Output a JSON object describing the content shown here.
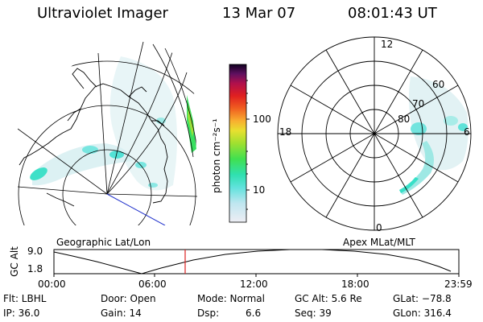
{
  "header": {
    "instrument": "Ultraviolet Imager",
    "date": "13 Mar 07",
    "time": "08:01:43 UT"
  },
  "colorbar": {
    "unit_label": "photon cm⁻²s⁻¹",
    "ticks": [
      "100",
      "10"
    ],
    "scale": "log",
    "colors": [
      "#e8e8f0",
      "#bfe6f0",
      "#7fe3e0",
      "#35e0c8",
      "#2ee07a",
      "#7ae036",
      "#c8e030",
      "#f0e030",
      "#f0b030",
      "#f06020",
      "#e02020",
      "#c01050",
      "#8a1070",
      "#400860",
      "#0a0020"
    ]
  },
  "left_panel": {
    "label": "Geographic Lat/Lon"
  },
  "right_panel": {
    "label": "Apex MLat/MLT",
    "mlt_labels": {
      "top": "12",
      "left": "18",
      "right": "6",
      "bottom": "0"
    },
    "lat_labels": [
      "60",
      "70",
      "80"
    ]
  },
  "orbit_plot": {
    "ylabel": "GC Alt",
    "yticks": [
      "9.0",
      "1.8"
    ],
    "xticks": [
      "00:00",
      "06:00",
      "12:00",
      "18:00",
      "23:59"
    ],
    "marker_color": "#dd2222"
  },
  "status": {
    "flt": "Flt: LBHL",
    "ip": "IP: 36.0",
    "door": "Door: Open",
    "gain": "Gain: 14",
    "mode": "Mode: Normal",
    "dsp_label": "Dsp:",
    "dsp_value": "6.6",
    "gc_alt": "GC Alt: 5.6 Re",
    "seq": "Seq: 39",
    "glat": "GLat: −78.8",
    "glon": "GLon: 316.4"
  }
}
